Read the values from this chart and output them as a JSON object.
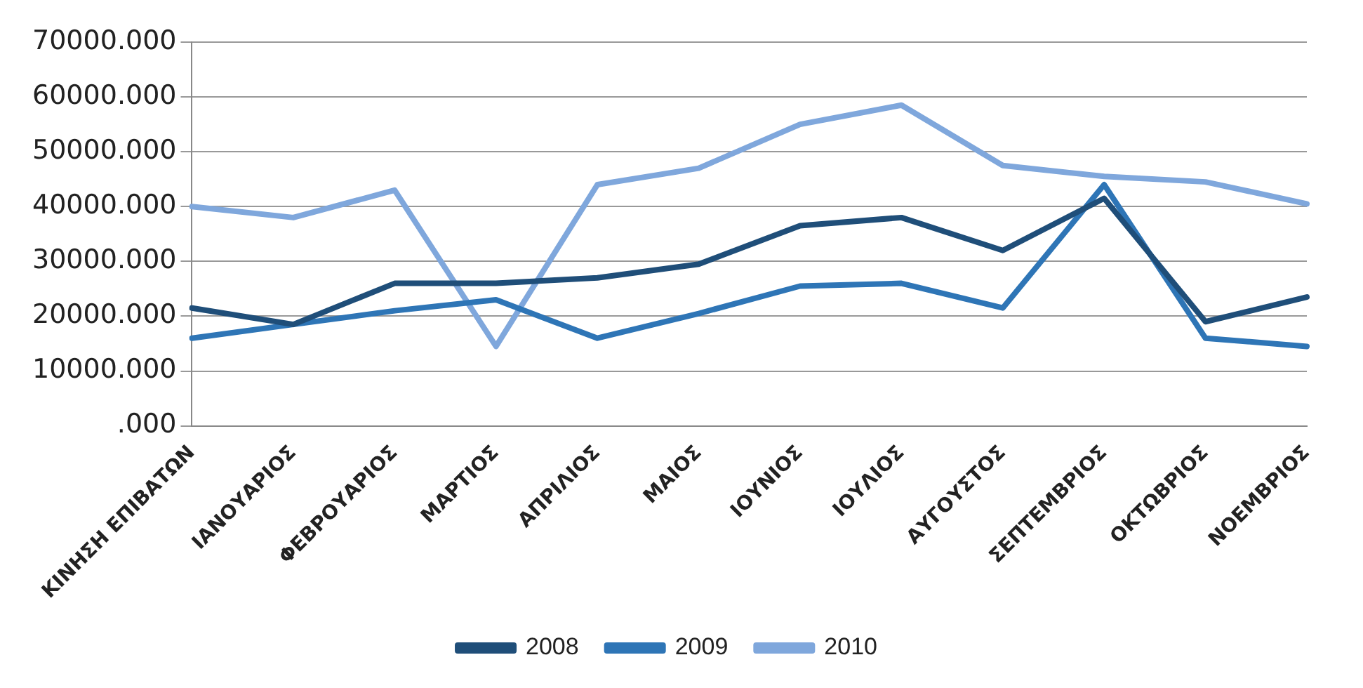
{
  "chart_data": {
    "type": "line",
    "categories": [
      "ΚΙΝΗΣΗ ΕΠΙΒΑΤΩΝ",
      "ΙΑΝΟΥΑΡΙΟΣ",
      "ΦΕΒΡΟΥΑΡΙΟΣ",
      "ΜΑΡΤΙΟΣ",
      "ΑΠΡΙΛΙΟΣ",
      "ΜΑΙΟΣ",
      "ΙΟΥΝΙΟΣ",
      "ΙΟΥΛΙΟΣ",
      "ΑΥΓΟΥΣΤΟΣ",
      "ΣΕΠΤΕΜΒΡΙΟΣ",
      "ΟΚΤΩΒΡΙΟΣ",
      "ΝΟΕΜΒΡΙΟΣ"
    ],
    "series": [
      {
        "name": "2008",
        "color": "#1f4e79",
        "values": [
          21500,
          18500,
          26000,
          26000,
          27000,
          29500,
          36500,
          38000,
          32000,
          41500,
          19000,
          23500
        ]
      },
      {
        "name": "2009",
        "color": "#2e75b6",
        "values": [
          16000,
          18500,
          21000,
          23000,
          16000,
          20500,
          25500,
          26000,
          21500,
          44000,
          16000,
          14500
        ]
      },
      {
        "name": "2010",
        "color": "#7fa7dc",
        "values": [
          40000,
          38000,
          43000,
          14500,
          44000,
          47000,
          55000,
          58500,
          47500,
          45500,
          44500,
          40500
        ]
      }
    ],
    "ylim": [
      0,
      70000
    ],
    "yticks": [
      {
        "value": 0,
        "label": ".000"
      },
      {
        "value": 10000,
        "label": "10000.000"
      },
      {
        "value": 20000,
        "label": "20000.000"
      },
      {
        "value": 30000,
        "label": "30000.000"
      },
      {
        "value": 40000,
        "label": "40000.000"
      },
      {
        "value": 50000,
        "label": "50000.000"
      },
      {
        "value": 60000,
        "label": "60000.000"
      },
      {
        "value": 70000,
        "label": "70000.000"
      }
    ],
    "grid": "y",
    "legend": "bottom",
    "marker": "none",
    "line_style": "solid"
  }
}
